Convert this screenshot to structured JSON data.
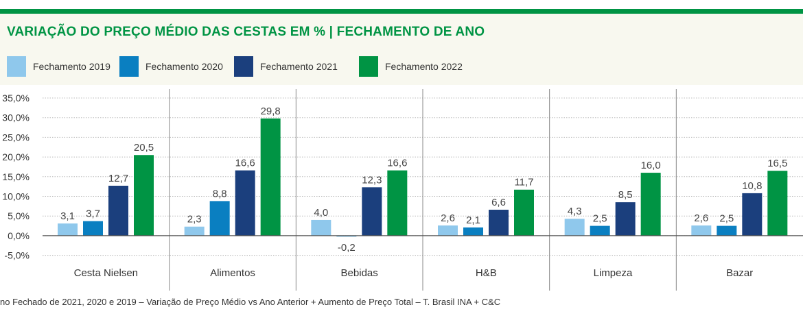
{
  "title": "VARIAÇÃO DO PREÇO MÉDIO DAS CESTAS EM % | FECHAMENTO DE ANO",
  "footer": "no Fechado de 2021, 2020 e 2019 – Variação de Preço Médio vs Ano Anterior + Aumento de Preço Total – T. Brasil INA + C&C",
  "colors": {
    "title": "#009444",
    "2019": "#8fc8ec",
    "2020": "#0a7fc1",
    "2021": "#1b3f7d",
    "2022": "#009444",
    "grid": "#bbbbbb",
    "separator": "#888888",
    "text": "#333333",
    "label": "#444444"
  },
  "chart_data": {
    "type": "bar",
    "categories": [
      "Cesta Nielsen",
      "Alimentos",
      "Bebidas",
      "H&B",
      "Limpeza",
      "Bazar"
    ],
    "series": [
      {
        "name": "Fechamento 2019",
        "color": "#8fc8ec",
        "values": [
          3.1,
          2.3,
          4.0,
          2.6,
          4.3,
          2.6
        ],
        "labels": [
          "3,1",
          "2,3",
          "4,0",
          "2,6",
          "4,3",
          "2,6"
        ]
      },
      {
        "name": "Fechamento 2020",
        "color": "#0a7fc1",
        "values": [
          3.7,
          8.8,
          -0.2,
          2.1,
          2.5,
          2.5
        ],
        "labels": [
          "3,7",
          "8,8",
          "-0,2",
          "2,1",
          "2,5",
          "2,5"
        ]
      },
      {
        "name": "Fechamento 2021",
        "color": "#1b3f7d",
        "values": [
          12.7,
          16.6,
          12.3,
          6.6,
          8.5,
          10.8
        ],
        "labels": [
          "12,7",
          "16,6",
          "12,3",
          "6,6",
          "8,5",
          "10,8"
        ]
      },
      {
        "name": "Fechamento 2022",
        "color": "#009444",
        "values": [
          20.5,
          29.8,
          16.6,
          11.7,
          16.0,
          16.5
        ],
        "labels": [
          "20,5",
          "29,8",
          "16,6",
          "11,7",
          "16,0",
          "16,5"
        ]
      }
    ],
    "yticks": [
      35,
      30,
      25,
      20,
      15,
      10,
      5,
      0,
      -5
    ],
    "ytick_labels": [
      "35,0%",
      "30,0%",
      "25,0%",
      "20,0%",
      "15,0%",
      "10,0%",
      "5,0%",
      "0,0%",
      "-5,0%"
    ],
    "ylim": [
      -5,
      35
    ],
    "grid": true,
    "legend_position": "top"
  }
}
